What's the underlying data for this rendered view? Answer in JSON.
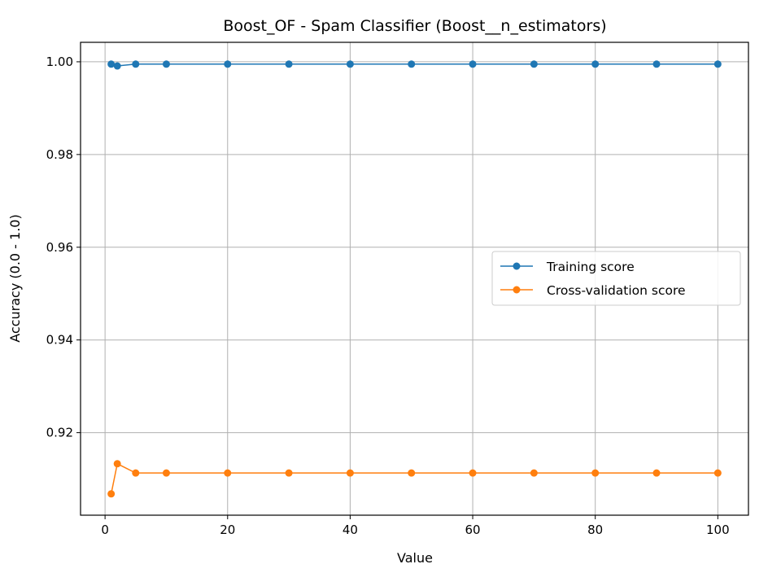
{
  "chart_data": {
    "type": "line",
    "title": "Boost_OF - Spam Classifier (Boost__n_estimators)",
    "xlabel": "Value",
    "ylabel": "Accuracy (0.0 - 1.0)",
    "xlim": [
      -4,
      105
    ],
    "ylim": [
      0.9022,
      1.0042
    ],
    "xticks": [
      0,
      20,
      40,
      60,
      80,
      100
    ],
    "yticks": [
      0.92,
      0.94,
      0.96,
      0.98,
      1.0
    ],
    "ytick_labels": [
      "0.92",
      "0.94",
      "0.96",
      "0.98",
      "1.00"
    ],
    "grid": true,
    "legend_position": "center-right",
    "x": [
      1,
      2,
      5,
      10,
      20,
      30,
      40,
      50,
      60,
      70,
      80,
      90,
      100
    ],
    "series": [
      {
        "name": "Training score",
        "color": "#1f77b4",
        "values": [
          0.9995,
          0.9991,
          0.9995,
          0.9995,
          0.9995,
          0.9995,
          0.9995,
          0.9995,
          0.9995,
          0.9995,
          0.9995,
          0.9995,
          0.9995
        ]
      },
      {
        "name": "Cross-validation score",
        "color": "#ff7f0e",
        "values": [
          0.9068,
          0.9133,
          0.9113,
          0.9113,
          0.9113,
          0.9113,
          0.9113,
          0.9113,
          0.9113,
          0.9113,
          0.9113,
          0.9113,
          0.9113
        ]
      }
    ]
  }
}
